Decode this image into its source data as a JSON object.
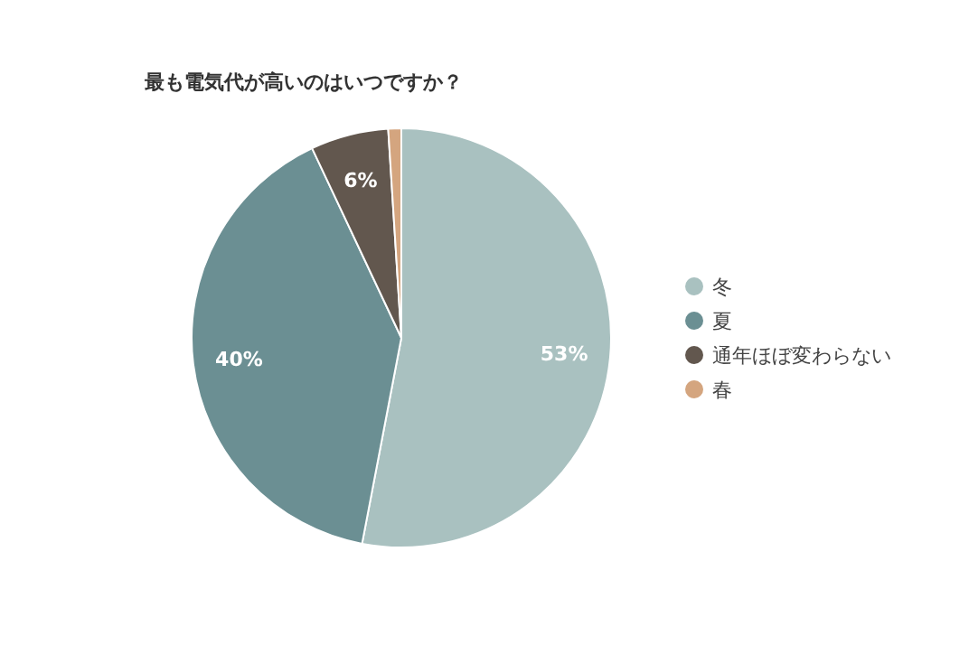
{
  "chart_data": {
    "type": "pie",
    "title": "最も電気代が高いのはいつですか？",
    "categories": [
      "冬",
      "夏",
      "通年ほぼ変わらない",
      "春"
    ],
    "values": [
      53,
      40,
      6,
      1
    ],
    "colors": [
      "#a9c1c0",
      "#6b8f93",
      "#62574e",
      "#d4a57f"
    ],
    "value_labels": [
      "53%",
      "40%",
      "6%",
      null
    ],
    "legend": "right"
  }
}
